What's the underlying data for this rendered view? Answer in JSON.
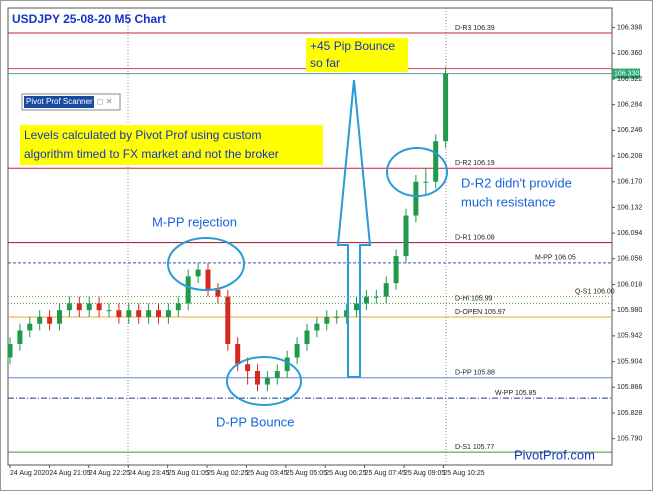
{
  "chart_data": {
    "type": "candlestick",
    "title": "USDJPY   25-08-20  M5 Chart",
    "up_color": "#1f9a4a",
    "down_color": "#d42a1e",
    "open": [
      105.91,
      105.93,
      105.95,
      105.96,
      105.97,
      105.96,
      105.98,
      105.99,
      105.98,
      105.99,
      105.98,
      105.98,
      105.97,
      105.98,
      105.97,
      105.98,
      105.97,
      105.98,
      105.99,
      106.03,
      106.04,
      106.01,
      106.0,
      105.93,
      105.9,
      105.89,
      105.87,
      105.88,
      105.89,
      105.91,
      105.93,
      105.95,
      105.96,
      105.97,
      105.97,
      105.98,
      105.99,
      106.0,
      106.0,
      106.02,
      106.06,
      106.12,
      106.17,
      106.17,
      106.23
    ],
    "high": [
      105.94,
      105.96,
      105.97,
      105.98,
      105.98,
      105.99,
      106.0,
      106.0,
      106.0,
      106.0,
      105.99,
      105.99,
      105.99,
      105.99,
      105.99,
      105.99,
      105.99,
      106.0,
      106.04,
      106.05,
      106.05,
      106.02,
      106.01,
      105.94,
      105.91,
      105.9,
      105.89,
      105.9,
      105.92,
      105.94,
      105.96,
      105.97,
      105.98,
      105.98,
      105.99,
      106.0,
      106.01,
      106.01,
      106.03,
      106.07,
      106.13,
      106.18,
      106.19,
      106.24,
      106.34
    ],
    "low": [
      105.9,
      105.92,
      105.94,
      105.95,
      105.95,
      105.95,
      105.97,
      105.97,
      105.97,
      105.97,
      105.97,
      105.96,
      105.96,
      105.96,
      105.96,
      105.96,
      105.96,
      105.97,
      105.98,
      106.02,
      106.0,
      105.99,
      105.92,
      105.89,
      105.87,
      105.86,
      105.86,
      105.87,
      105.88,
      105.9,
      105.92,
      105.94,
      105.95,
      105.96,
      105.96,
      105.97,
      105.98,
      105.99,
      105.99,
      106.01,
      106.05,
      106.11,
      106.15,
      106.16,
      106.22
    ],
    "close": [
      105.93,
      105.95,
      105.96,
      105.97,
      105.96,
      105.98,
      105.99,
      105.98,
      105.99,
      105.98,
      105.98,
      105.97,
      105.98,
      105.97,
      105.98,
      105.97,
      105.98,
      105.99,
      106.03,
      106.04,
      106.01,
      106.0,
      105.93,
      105.9,
      105.89,
      105.87,
      105.88,
      105.89,
      105.91,
      105.93,
      105.95,
      105.96,
      105.97,
      105.97,
      105.98,
      105.99,
      106.0,
      106.0,
      106.02,
      106.06,
      106.12,
      106.17,
      106.17,
      106.23,
      106.33
    ],
    "x_labels": [
      "24 Aug 2020",
      "24 Aug 21:05",
      "24 Aug 22:25",
      "24 Aug 23:45",
      "25 Aug 01:05",
      "25 Aug 02:25",
      "25 Aug 03:45",
      "25 Aug 05:05",
      "25 Aug 06:25",
      "25 Aug 07:45",
      "25 Aug 09:05",
      "25 Aug 10:25"
    ],
    "ylim": [
      105.751,
      106.427
    ],
    "yticks": [
      {
        "value": 106.398,
        "label": "106.398"
      },
      {
        "value": 106.36,
        "label": "106.360"
      },
      {
        "value": 106.322,
        "label": "106.322"
      },
      {
        "value": 106.284,
        "label": "106.284"
      },
      {
        "value": 106.246,
        "label": "106.246"
      },
      {
        "value": 106.208,
        "label": "106.208"
      },
      {
        "value": 106.17,
        "label": "106.170"
      },
      {
        "value": 106.132,
        "label": "106.132"
      },
      {
        "value": 106.094,
        "label": "106.094"
      },
      {
        "value": 106.056,
        "label": "106.056"
      },
      {
        "value": 106.018,
        "label": "106.018"
      },
      {
        "value": 105.98,
        "label": "105.980"
      },
      {
        "value": 105.942,
        "label": "105.942"
      },
      {
        "value": 105.904,
        "label": "105.904"
      },
      {
        "value": 105.866,
        "label": "105.866"
      },
      {
        "value": 105.828,
        "label": "105.828"
      },
      {
        "value": 105.79,
        "label": "105.790"
      }
    ],
    "levels": [
      {
        "label": "D-R3 106.39",
        "value": 106.39,
        "color": "#c0243a"
      },
      {
        "label": "D-R2 106.19",
        "value": 106.19,
        "color": "#c0243a"
      },
      {
        "label": "D-R1 106.08",
        "value": 106.08,
        "color": "#a01030"
      },
      {
        "label": "M-PP 106.05",
        "value": 106.05,
        "color": "#3050b0"
      },
      {
        "label": "Q-S1 106.00",
        "value": 106.0,
        "color": "#8a9a20"
      },
      {
        "label": "D-Hi 105.99",
        "value": 105.99,
        "color": "#2a9a3a"
      },
      {
        "label": "D-OPEN 105.97",
        "value": 105.97,
        "color": "#f0a030"
      },
      {
        "label": "D-PP 105.88",
        "value": 105.88,
        "color": "#6080e0"
      },
      {
        "label": "W-PP 105.85",
        "value": 105.85,
        "color": "#1a3a90"
      },
      {
        "label": "D-S1 105.77",
        "value": 105.77,
        "color": "#3a9a30"
      }
    ],
    "bid": {
      "value": 106.33,
      "label": "106.330"
    },
    "annotations": {
      "bounce": [
        "+45 Pip Bounce",
        "so far"
      ],
      "levels_note": [
        "Levels calculated by Pivot Prof using custom",
        "algorithm timed to FX market and not the broker"
      ],
      "mpp": "M-PP rejection",
      "dpp": "D-PP Bounce",
      "dr2": [
        "D-R2  didn't provide",
        "much resistance"
      ],
      "site": "PivotProf.com",
      "scanner": "Pivot Prof Scanner"
    }
  }
}
